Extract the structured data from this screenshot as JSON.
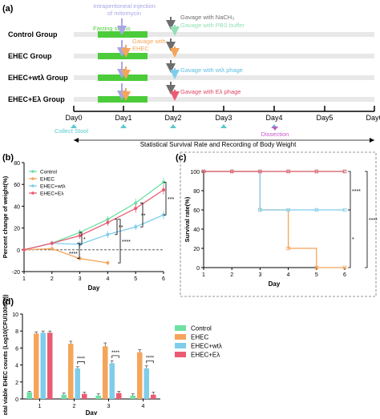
{
  "colors": {
    "control": "#6fe0a4",
    "ehec": "#f5a55a",
    "wt": "#7fcdea",
    "elambda": "#ea5b73",
    "mitomycin": "#a9a6e6",
    "fasting": "#4ccc3a",
    "nach": "#6e6e6e",
    "pbs": "#92e0b4",
    "gavage_wt": "#5dbde0",
    "gavage_e": "#e04565",
    "dissection": "#c956c9",
    "stool": "#57c9cc",
    "lane": "#e8e8e8"
  },
  "panel_a": {
    "label": "(a)",
    "groups": [
      "Control Group",
      "EHEC Group",
      "EHEC+wtλ Group",
      "EHEC+Eλ Group"
    ],
    "days": [
      "Day0",
      "Day1",
      "Day2",
      "Day3",
      "Day4",
      "Day5",
      "Day6"
    ],
    "intraperitoneal": [
      "Intraperitoneal injection",
      "of mitomycin"
    ],
    "fasting": "Fasting status",
    "gavage_nach": "Gavage with NaCH₃",
    "gavage_pbs": "Gavage with PBS buffer",
    "gavage_ehec": [
      "Gavage with",
      "EHEC"
    ],
    "gavage_wt": "Gavage with wtλ phage",
    "gavage_e": "Gavage with Eλ phage",
    "collect_stool": "Collect Stool",
    "dissection": "Dissection",
    "survival_note": "Statistical Survival Rate and Recording of Body Weight"
  },
  "panel_b": {
    "label": "(b)",
    "sig": [
      "***",
      "*",
      "**",
      "****",
      "**",
      "****"
    ]
  },
  "panel_c": {
    "label": "(c)",
    "sig": [
      "****",
      "*",
      "****"
    ]
  },
  "panel_d": {
    "label": "(d)",
    "sig": [
      "****",
      "****",
      "****"
    ]
  },
  "chart_data": [
    {
      "type": "line",
      "xlabel": "Day",
      "ylabel": "Percent change of weight(%)",
      "xlim": [
        1,
        6
      ],
      "ylim": [
        -20,
        80
      ],
      "yticks": [
        -20,
        0,
        20,
        40,
        60,
        80
      ],
      "xticks": [
        1,
        2,
        3,
        4,
        5,
        6
      ],
      "legend": "top-left",
      "series": [
        {
          "name": "Control",
          "x": [
            1,
            2,
            3,
            4,
            5,
            6
          ],
          "y": [
            0,
            6,
            16,
            28,
            43,
            62
          ],
          "err": [
            1,
            2,
            3,
            3,
            4,
            4
          ]
        },
        {
          "name": "EHEC",
          "x": [
            1,
            2,
            3,
            4
          ],
          "y": [
            0,
            1,
            -8,
            -12
          ],
          "err": [
            1,
            2,
            2,
            2
          ]
        },
        {
          "name": "EHEC+wtλ",
          "x": [
            1,
            2,
            3,
            4,
            5,
            6
          ],
          "y": [
            0,
            6,
            5,
            14,
            21,
            32
          ],
          "err": [
            1,
            2,
            3,
            3,
            3,
            4
          ]
        },
        {
          "name": "EHEC+Eλ",
          "x": [
            1,
            2,
            3,
            4,
            5,
            6
          ],
          "y": [
            0,
            6,
            13,
            25,
            38,
            55
          ],
          "err": [
            1,
            2,
            3,
            3,
            4,
            4
          ]
        }
      ]
    },
    {
      "type": "line",
      "xlabel": "Day",
      "ylabel": "Survival rate(%)",
      "xlim": [
        1,
        6
      ],
      "ylim": [
        0,
        100
      ],
      "yticks": [
        0,
        20,
        40,
        60,
        80,
        100
      ],
      "xticks": [
        1,
        2,
        3,
        4,
        5,
        6
      ],
      "series": [
        {
          "name": "Control",
          "step": true,
          "x": [
            1,
            2,
            3,
            4,
            5,
            6
          ],
          "y": [
            100,
            100,
            100,
            100,
            100,
            100
          ]
        },
        {
          "name": "EHEC",
          "step": true,
          "x": [
            1,
            2,
            3,
            4,
            5,
            6
          ],
          "y": [
            100,
            100,
            60,
            20,
            0,
            0
          ]
        },
        {
          "name": "EHEC+wtλ",
          "step": true,
          "x": [
            1,
            2,
            3,
            4,
            5,
            6
          ],
          "y": [
            100,
            100,
            60,
            60,
            60,
            60
          ]
        },
        {
          "name": "EHEC+Eλ",
          "step": true,
          "x": [
            1,
            2,
            3,
            4,
            5,
            6
          ],
          "y": [
            100,
            100,
            100,
            100,
            100,
            100
          ]
        }
      ]
    },
    {
      "type": "bar",
      "xlabel": "Day",
      "ylabel": "Total viable EHEC counts (Log10(CFU/100mg))",
      "categories": [
        "1",
        "2",
        "3",
        "4"
      ],
      "ylim": [
        0,
        10
      ],
      "yticks": [
        0,
        2,
        4,
        6,
        8,
        10
      ],
      "legend": "right",
      "series": [
        {
          "name": "Control",
          "values": [
            0.8,
            0.5,
            0.4,
            0.4
          ],
          "err": [
            0.1,
            0.2,
            0.2,
            0.2
          ]
        },
        {
          "name": "EHEC",
          "values": [
            7.7,
            6.5,
            6.2,
            5.5
          ],
          "err": [
            0.2,
            0.3,
            0.4,
            0.3
          ]
        },
        {
          "name": "EHEC+wtλ",
          "values": [
            7.8,
            3.6,
            4.2,
            3.6
          ],
          "err": [
            0.2,
            0.2,
            0.3,
            0.3
          ]
        },
        {
          "name": "EHEC+Eλ",
          "values": [
            7.8,
            0.6,
            0.7,
            0.5
          ],
          "err": [
            0.2,
            0.2,
            0.2,
            0.3
          ]
        }
      ]
    }
  ]
}
